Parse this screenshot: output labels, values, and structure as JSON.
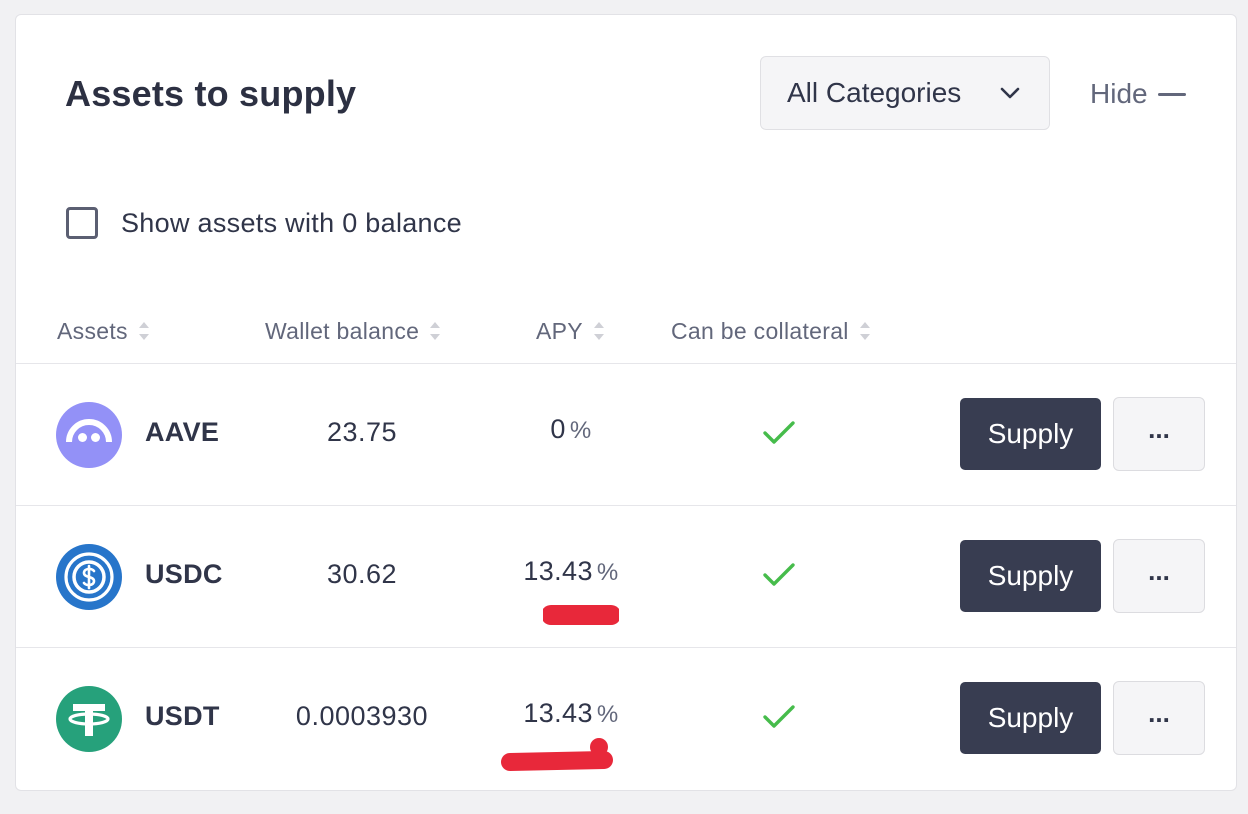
{
  "header": {
    "title": "Assets to supply",
    "category_select": "All Categories",
    "hide_label": "Hide"
  },
  "filter": {
    "show_zero_label": "Show assets with 0 balance",
    "show_zero_checked": false
  },
  "table": {
    "columns": [
      "Assets",
      "Wallet balance",
      "APY",
      "Can be collateral"
    ],
    "rows": [
      {
        "symbol": "AAVE",
        "icon": "aave-icon",
        "balance": "23.75",
        "apy": "0",
        "apy_unit": "%",
        "collateral": true,
        "supply_label": "Supply",
        "more_label": "..."
      },
      {
        "symbol": "USDC",
        "icon": "usdc-icon",
        "balance": "30.62",
        "apy": "13.43",
        "apy_unit": "%",
        "collateral": true,
        "supply_label": "Supply",
        "more_label": "..."
      },
      {
        "symbol": "USDT",
        "icon": "usdt-icon",
        "balance": "0.0003930",
        "apy": "13.43",
        "apy_unit": "%",
        "collateral": true,
        "supply_label": "Supply",
        "more_label": "..."
      }
    ]
  },
  "colors": {
    "primary_button": "#383d51",
    "check": "#46bc4b",
    "aave": "#9391f7",
    "usdc": "#2775ca",
    "usdt": "#26a17b",
    "annotation": "#e8283a"
  }
}
